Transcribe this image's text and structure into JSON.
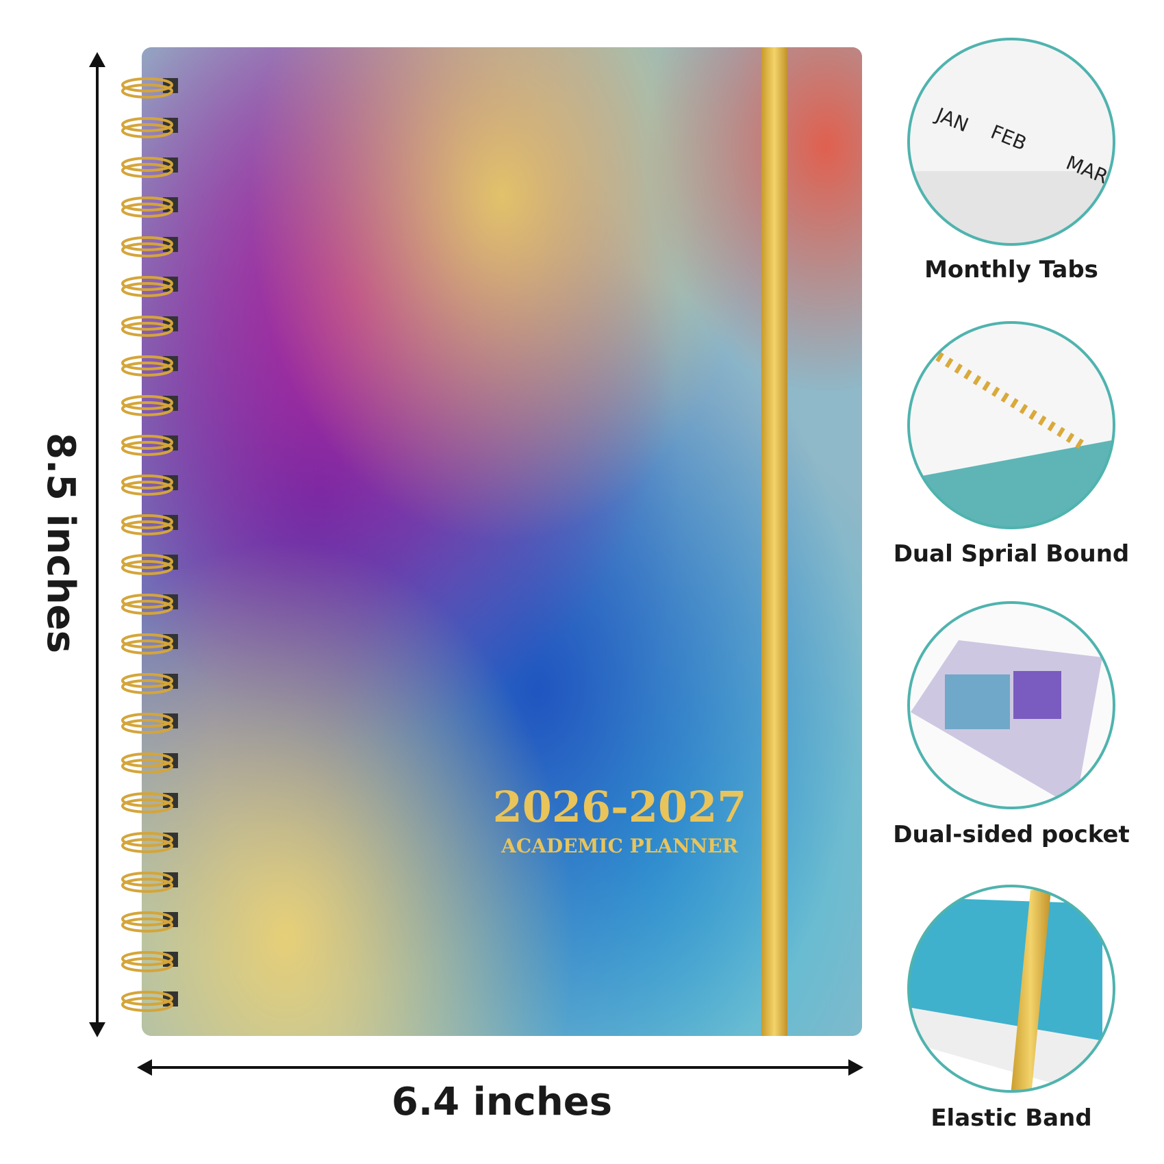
{
  "dimensions": {
    "height": "8.5 inches",
    "width": "6.4 inches"
  },
  "cover": {
    "years": "2026-2027",
    "subtitle": "ACADEMIC PLANNER"
  },
  "features": [
    {
      "label": "Monthly Tabs",
      "tabs": [
        "JAN",
        "FEB",
        "MAR"
      ]
    },
    {
      "label": "Dual Sprial Bound"
    },
    {
      "label": "Dual-sided pocket"
    },
    {
      "label": "Elastic Band"
    }
  ]
}
